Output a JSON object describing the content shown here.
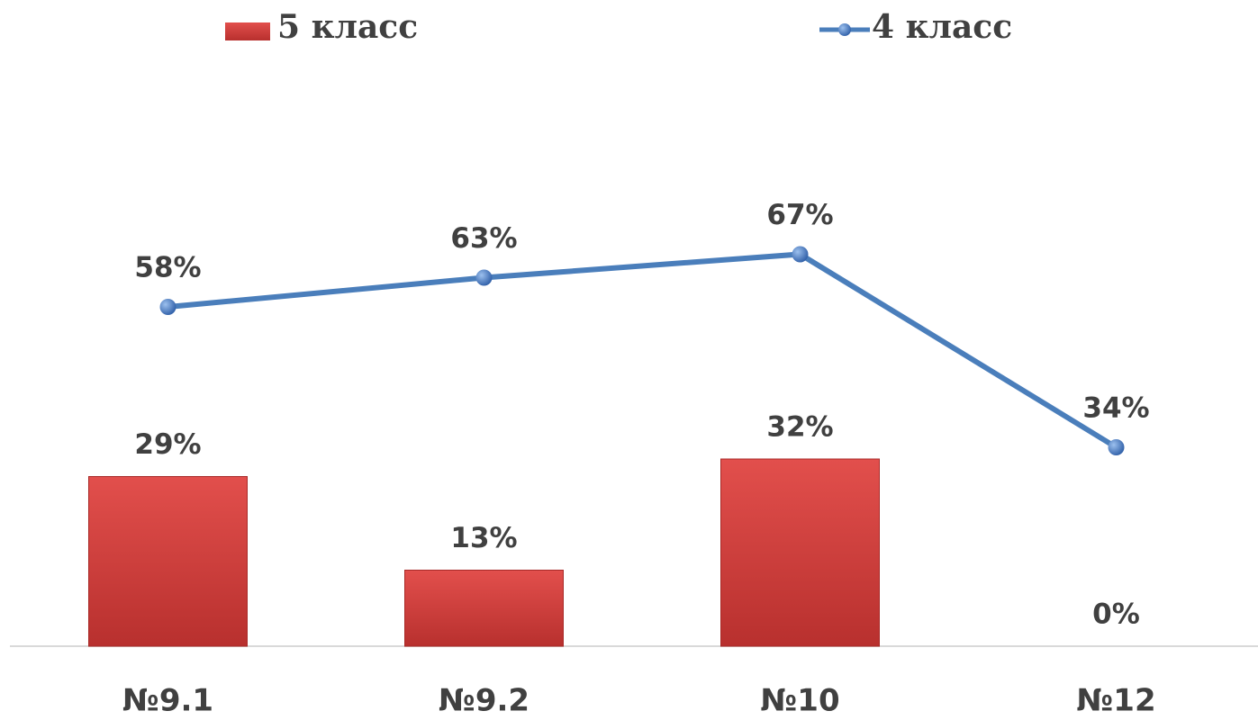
{
  "chart_data": {
    "type": "bar",
    "categories": [
      "№9.1",
      "№9.2",
      "№10",
      "№12"
    ],
    "series": [
      {
        "name": "5 класс",
        "type": "bar",
        "color": "#d33f3c",
        "values": [
          29,
          13,
          32,
          0
        ],
        "value_labels": [
          "29%",
          "13%",
          "32%",
          "0%"
        ]
      },
      {
        "name": "4 класс",
        "type": "line",
        "color": "#4a7ebb",
        "values": [
          58,
          63,
          67,
          34
        ],
        "value_labels": [
          "58%",
          "63%",
          "67%",
          "34%"
        ]
      }
    ],
    "ylim": [
      0,
      100
    ],
    "legend": "top"
  }
}
